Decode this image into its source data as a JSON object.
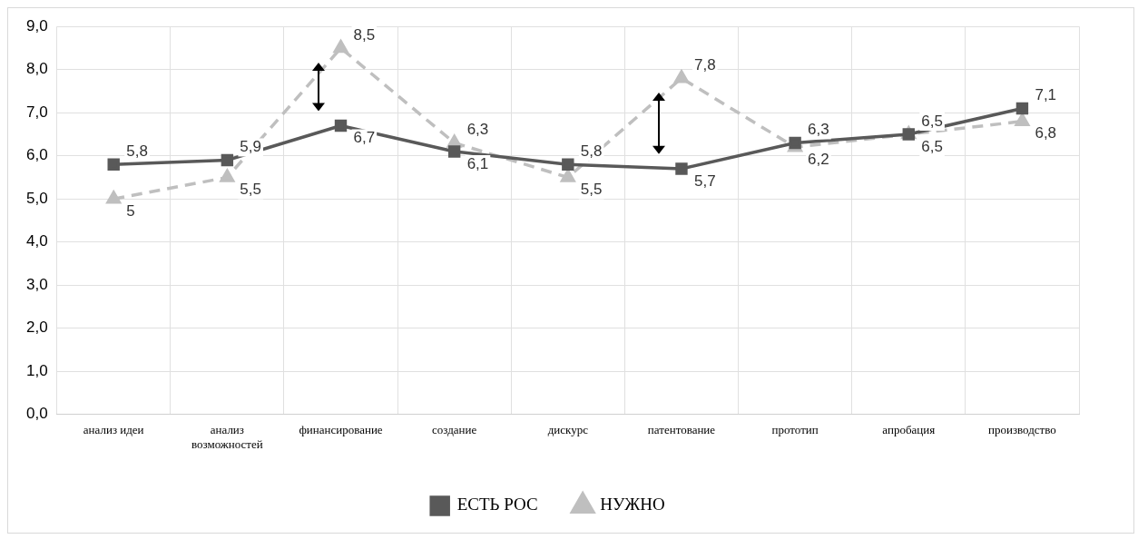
{
  "chart_data": {
    "type": "line",
    "categories": [
      "анализ идеи",
      "анализ возможностей",
      "финансирование",
      "создание",
      "дискурс",
      "патентование",
      "прототип",
      "апробация",
      "производство"
    ],
    "series": [
      {
        "name": "ЕСТЬ РОС",
        "color": "#595959",
        "marker": "square",
        "line_style": "solid",
        "values": [
          5.8,
          5.9,
          6.7,
          6.1,
          5.8,
          5.7,
          6.3,
          6.5,
          7.1
        ],
        "value_labels": [
          "5,8",
          "5,9",
          "6,7",
          "6,1",
          "5,8",
          "5,7",
          "6,3",
          "6,5",
          "7,1"
        ]
      },
      {
        "name": "НУЖНО",
        "color": "#bfbfbf",
        "marker": "triangle",
        "line_style": "dashed",
        "values": [
          5,
          5.5,
          8.5,
          6.3,
          5.5,
          7.8,
          6.2,
          6.5,
          6.8
        ],
        "value_labels": [
          "5",
          "5,5",
          "8,5",
          "6,3",
          "5,5",
          "7,8",
          "6,2",
          "6,5",
          "6,8"
        ]
      }
    ],
    "ylim": [
      0,
      9
    ],
    "yticks": [
      {
        "value": 0,
        "label": "0,0"
      },
      {
        "value": 1,
        "label": "1,0"
      },
      {
        "value": 2,
        "label": "2,0"
      },
      {
        "value": 3,
        "label": "3,0"
      },
      {
        "value": 4,
        "label": "4,0"
      },
      {
        "value": 5,
        "label": "5,0"
      },
      {
        "value": 6,
        "label": "6,0"
      },
      {
        "value": 7,
        "label": "7,0"
      },
      {
        "value": 8,
        "label": "8,0"
      },
      {
        "value": 9,
        "label": "9,0"
      }
    ],
    "grid": true,
    "legend": "bottom"
  }
}
